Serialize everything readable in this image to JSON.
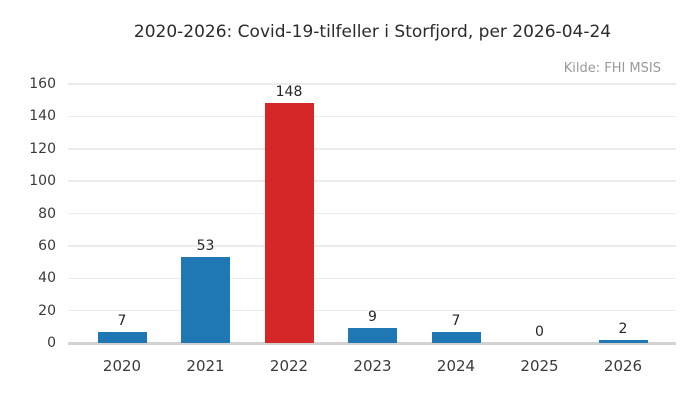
{
  "chart_data": {
    "type": "bar",
    "title": "2020-2026: Covid-19-tilfeller i Storfjord, per 2026-04-24",
    "source": "Kilde: FHI MSIS",
    "categories": [
      "2020",
      "2021",
      "2022",
      "2023",
      "2024",
      "2025",
      "2026"
    ],
    "values": [
      7,
      53,
      148,
      9,
      7,
      0,
      2
    ],
    "bar_colors": [
      "#1f77b4",
      "#1f77b4",
      "#d62728",
      "#1f77b4",
      "#1f77b4",
      "#1f77b4",
      "#1f77b4"
    ],
    "highlighted_category": "2022",
    "xlabel": "",
    "ylabel": "",
    "ylim": [
      0,
      160
    ],
    "yticks": [
      0,
      20,
      40,
      60,
      80,
      100,
      120,
      140,
      160
    ],
    "grid": "horizontal",
    "legend": "none",
    "colors": {
      "bar_default": "#1f77b4",
      "bar_highlight": "#d62728",
      "gridline": "#ebebeb",
      "axis_line": "#d2d2d2",
      "tick_text": "#3a3a3a",
      "title_text": "#2b2b2b",
      "source_text": "#9a9a9a",
      "background": "#ffffff"
    }
  }
}
